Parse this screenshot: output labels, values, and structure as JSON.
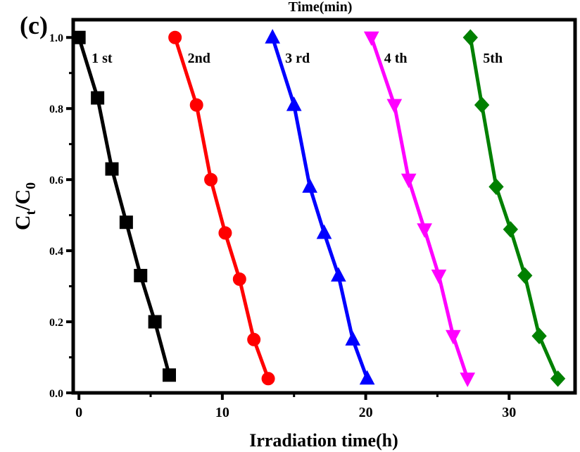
{
  "panel_label": "(c)",
  "top_title": "Time(min)",
  "chart_data": {
    "type": "line",
    "xlabel": "Irradiation time(h)",
    "ylabel_main": "C",
    "ylabel_sub1": "t",
    "ylabel_sep": "/C",
    "ylabel_sub2": "0",
    "xlim": [
      -0.4,
      34.6
    ],
    "ylim": [
      0.0,
      1.05
    ],
    "xticks": [
      0,
      10,
      20,
      30
    ],
    "xtick_labels": [
      "0",
      "10",
      "20",
      "30"
    ],
    "yticks": [
      0.0,
      0.2,
      0.4,
      0.6,
      0.8,
      1.0
    ],
    "ytick_labels": [
      "0.0",
      "0.2",
      "0.4",
      "0.6",
      "0.8",
      "1.0"
    ],
    "grid": false,
    "series": [
      {
        "name": "1 st",
        "color": "#000000",
        "marker": "square",
        "x": [
          0,
          1.3,
          2.3,
          3.3,
          4.3,
          5.3,
          6.3
        ],
        "y": [
          1.0,
          0.83,
          0.63,
          0.48,
          0.33,
          0.2,
          0.05
        ]
      },
      {
        "name": "2nd",
        "color": "#ff0000",
        "marker": "circle",
        "x": [
          6.7,
          8.2,
          9.2,
          10.2,
          11.2,
          12.2,
          13.2
        ],
        "y": [
          1.0,
          0.81,
          0.6,
          0.45,
          0.32,
          0.15,
          0.04
        ]
      },
      {
        "name": "3 rd",
        "color": "#0000ff",
        "marker": "triangle-up",
        "x": [
          13.5,
          15.0,
          16.1,
          17.1,
          18.1,
          19.1,
          20.1
        ],
        "y": [
          1.0,
          0.81,
          0.58,
          0.45,
          0.33,
          0.15,
          0.04
        ]
      },
      {
        "name": "4 th",
        "color": "#ff00ff",
        "marker": "triangle-down",
        "x": [
          20.4,
          22.0,
          23.0,
          24.1,
          25.1,
          26.1,
          27.1
        ],
        "y": [
          1.0,
          0.81,
          0.6,
          0.46,
          0.33,
          0.16,
          0.04
        ]
      },
      {
        "name": "5th",
        "color": "#008000",
        "marker": "diamond",
        "x": [
          27.3,
          28.1,
          29.1,
          30.1,
          31.1,
          32.1,
          33.4
        ],
        "y": [
          1.0,
          0.81,
          0.58,
          0.46,
          0.33,
          0.16,
          0.04
        ]
      }
    ]
  }
}
